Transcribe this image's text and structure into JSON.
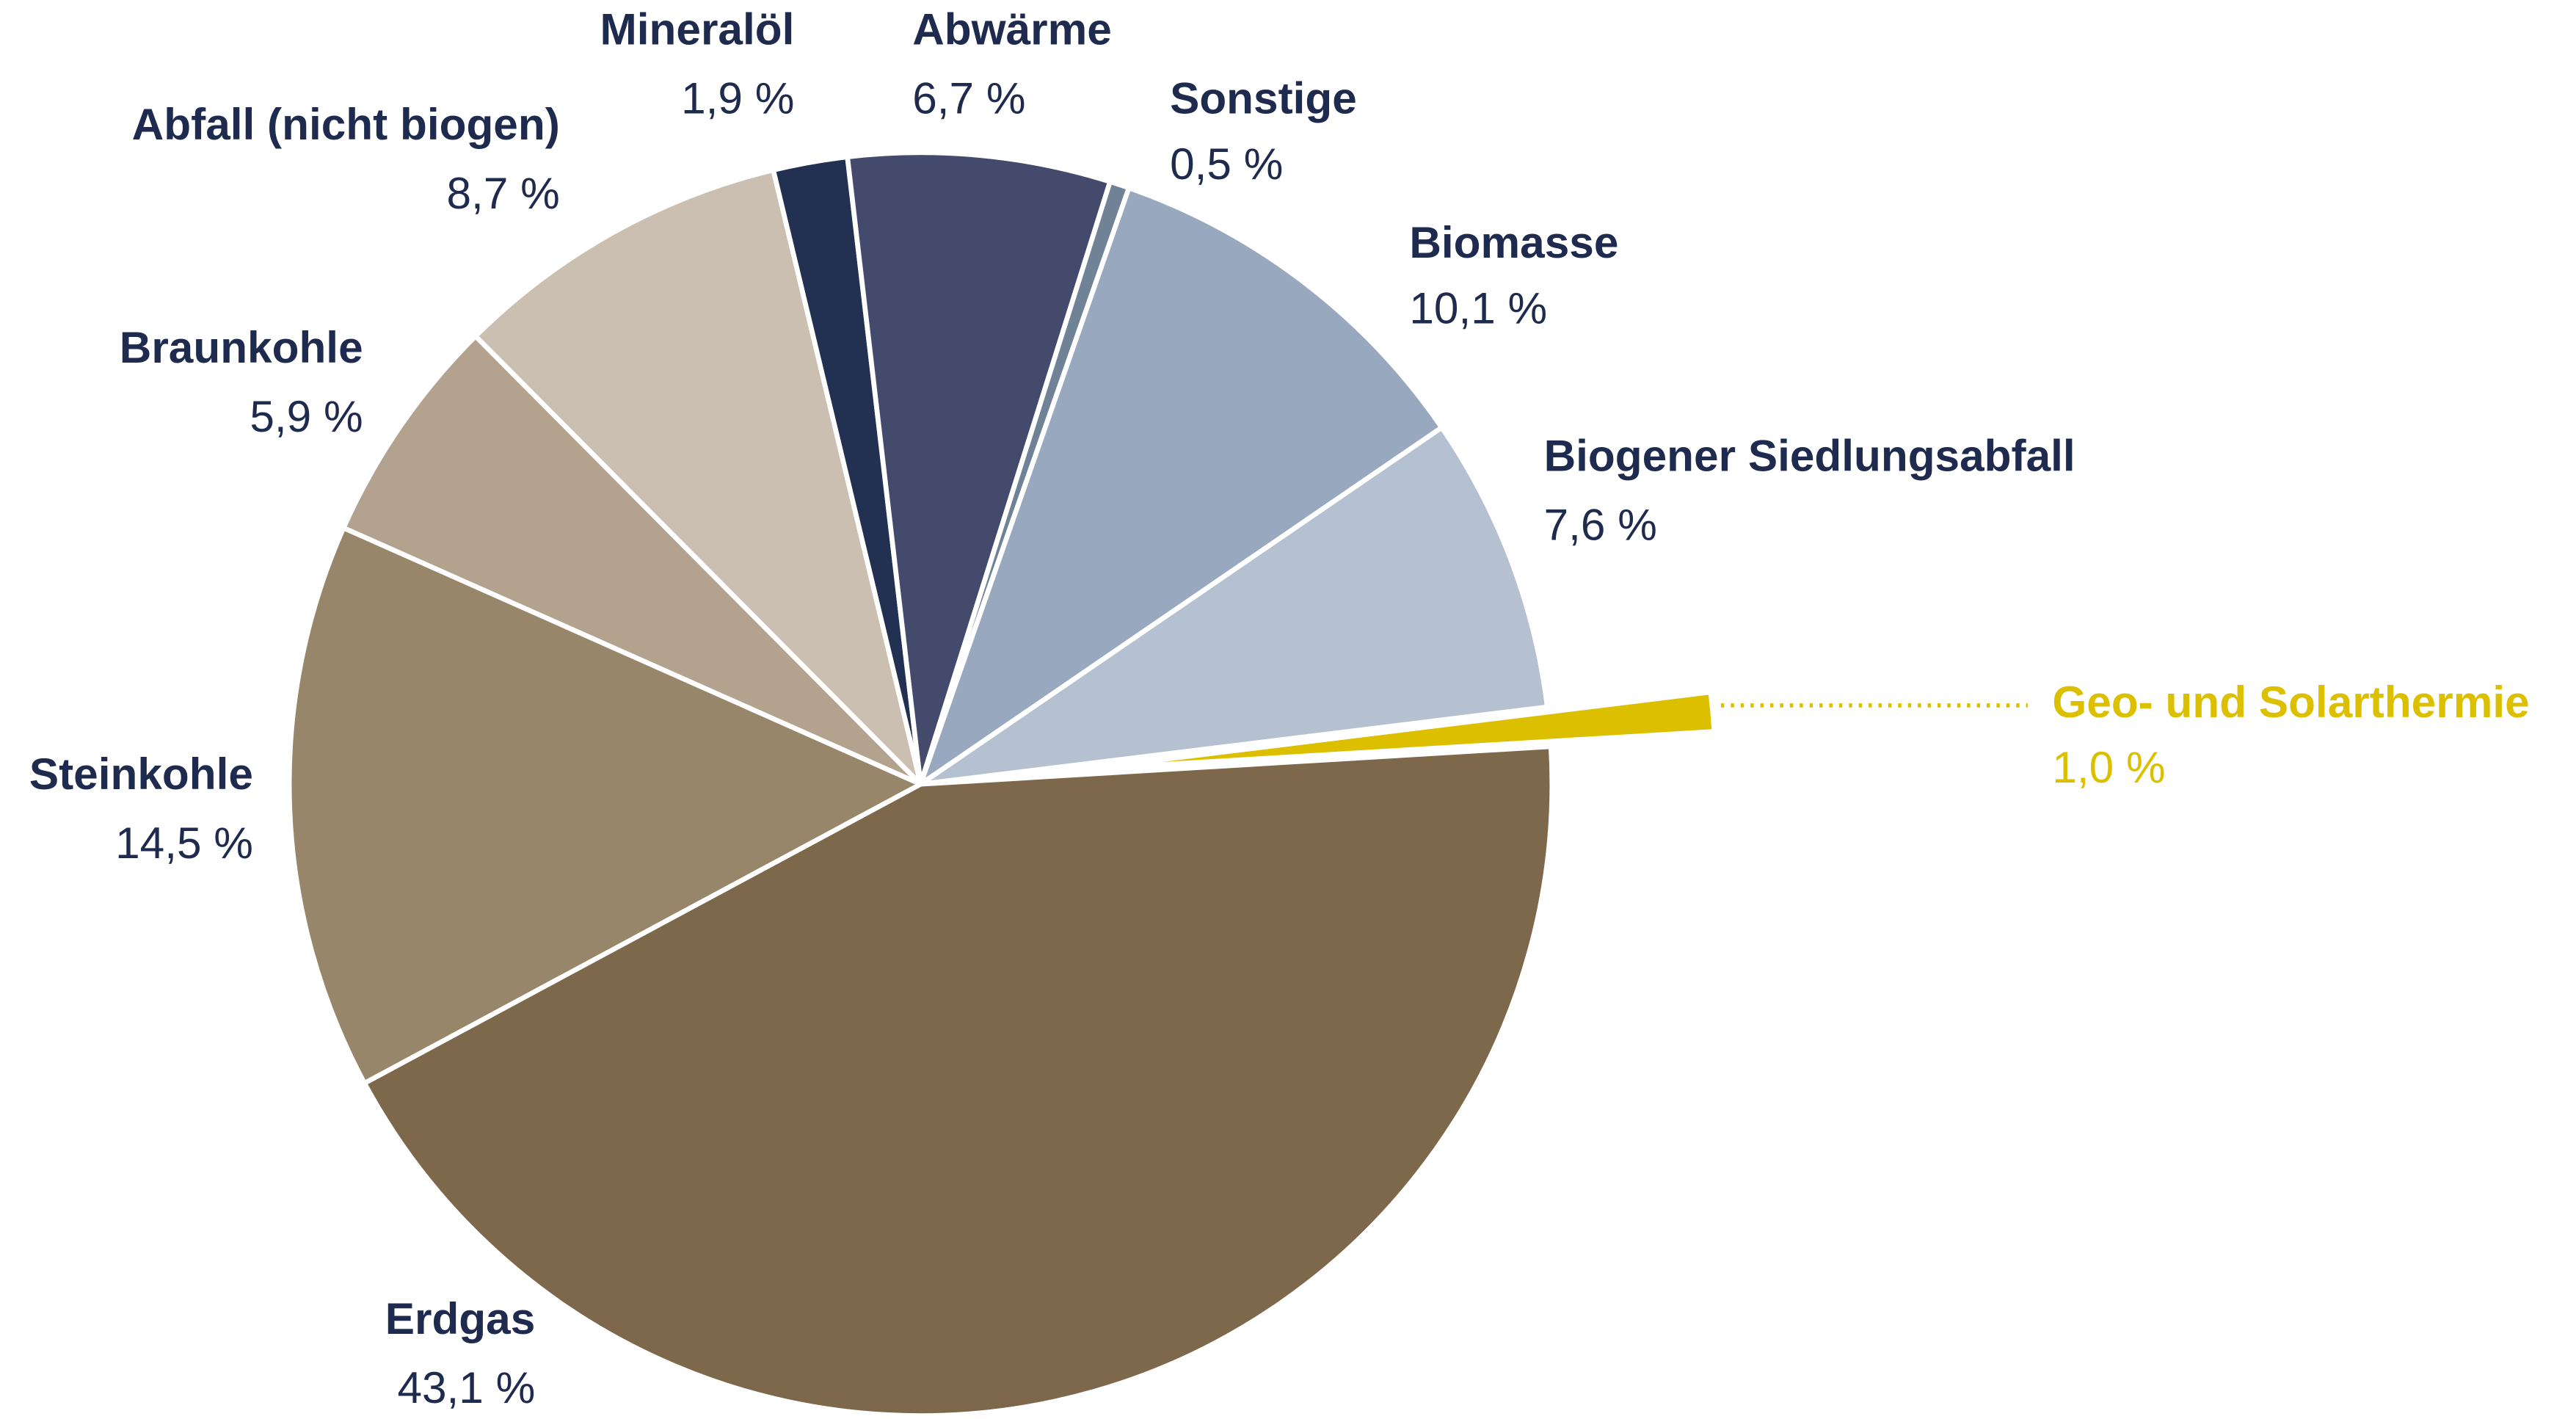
{
  "chart_data": {
    "type": "pie",
    "categories": [
      "Mineralöl",
      "Abwärme",
      "Sonstige",
      "Biomasse",
      "Biogener Siedlungsabfall",
      "Geo- und Solarthermie",
      "Erdgas",
      "Steinkohle",
      "Braunkohle",
      "Abfall (nicht biogen)"
    ],
    "values": [
      1.9,
      6.7,
      0.5,
      10.1,
      7.6,
      1.0,
      43.1,
      14.5,
      5.9,
      8.7
    ],
    "value_labels": [
      "1,9 %",
      "6,7 %",
      "0,5 %",
      "10,1 %",
      "7,6 %",
      "1,0 %",
      "43,1 %",
      "14,5 %",
      "5,9 %",
      "8,7 %"
    ],
    "colors": [
      "#223052",
      "#434a6c",
      "#6f8296",
      "#98a9bf",
      "#b5c0d0",
      "#dcc000",
      "#7e684b",
      "#98866b",
      "#b2a28e",
      "#cbbfb1"
    ]
  }
}
